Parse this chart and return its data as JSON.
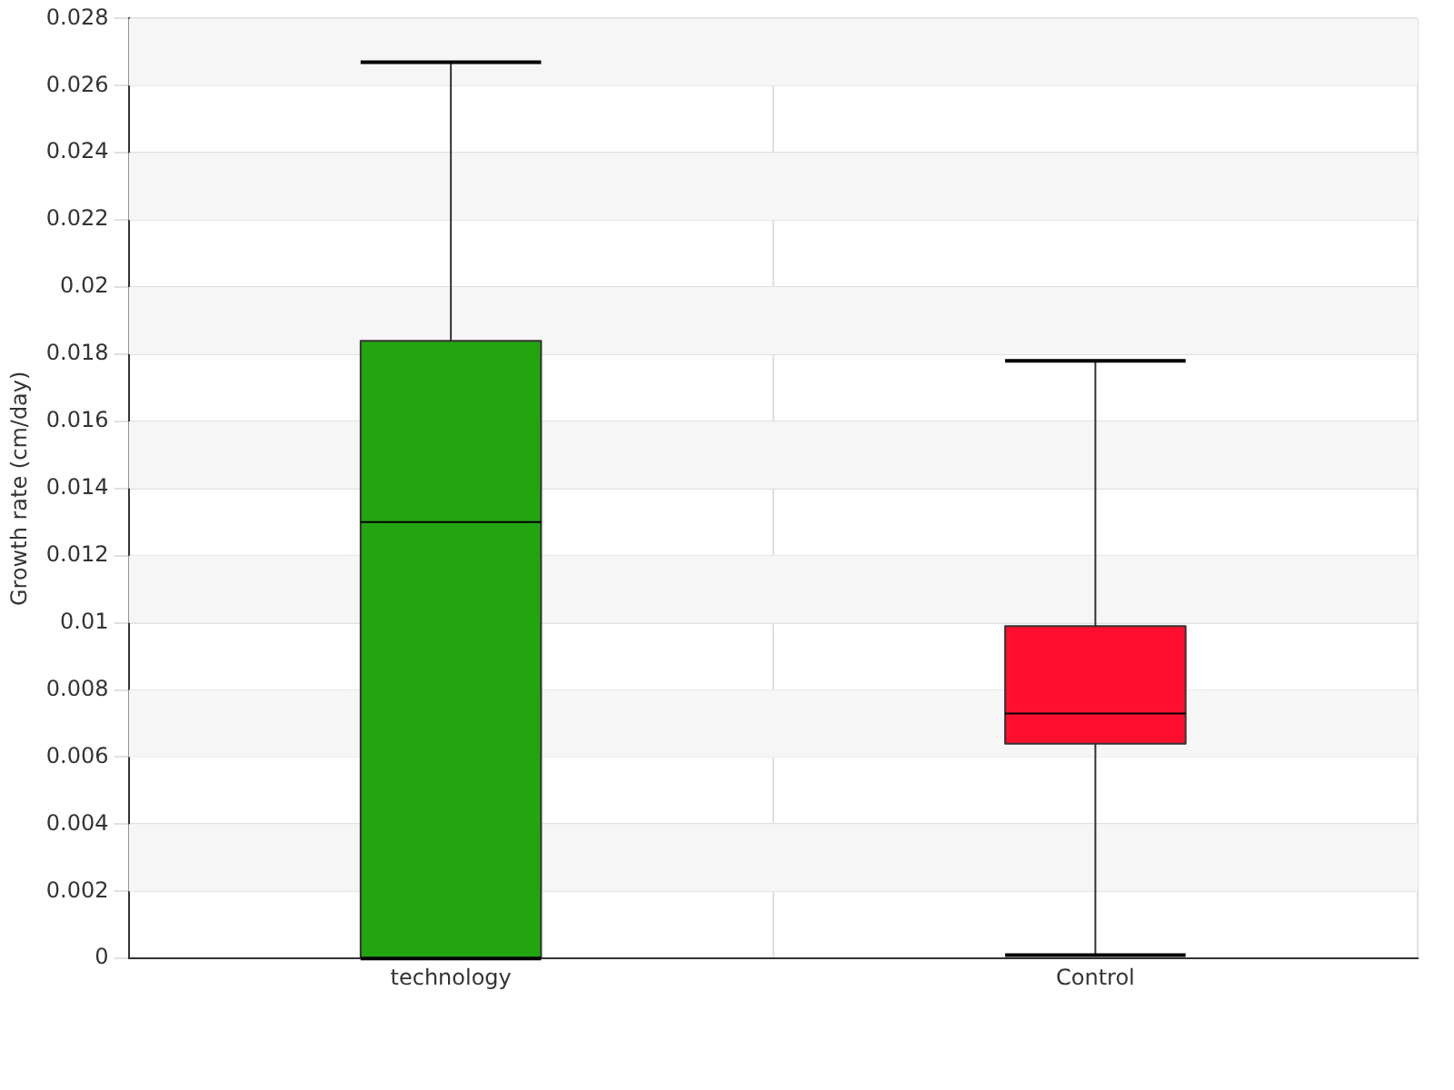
{
  "chart_data": {
    "type": "box",
    "ylabel": "Growth rate (cm/day)",
    "categories": [
      "technology",
      "Control"
    ],
    "colors": [
      "#22a511",
      "#ff0f2d"
    ],
    "boxes": [
      {
        "low": 0,
        "q1": 0,
        "median": 0.013,
        "q3": 0.0184,
        "high": 0.0267
      },
      {
        "low": 0.0001,
        "q1": 0.0064,
        "median": 0.0073,
        "q3": 0.0099,
        "high": 0.0178
      }
    ],
    "ylim": [
      0,
      0.028
    ],
    "yticks": [
      0,
      0.002,
      0.004,
      0.006,
      0.008,
      0.01,
      0.012,
      0.014,
      0.016,
      0.018,
      0.02,
      0.022,
      0.024,
      0.026,
      0.028
    ],
    "grid": true,
    "legend": false
  }
}
